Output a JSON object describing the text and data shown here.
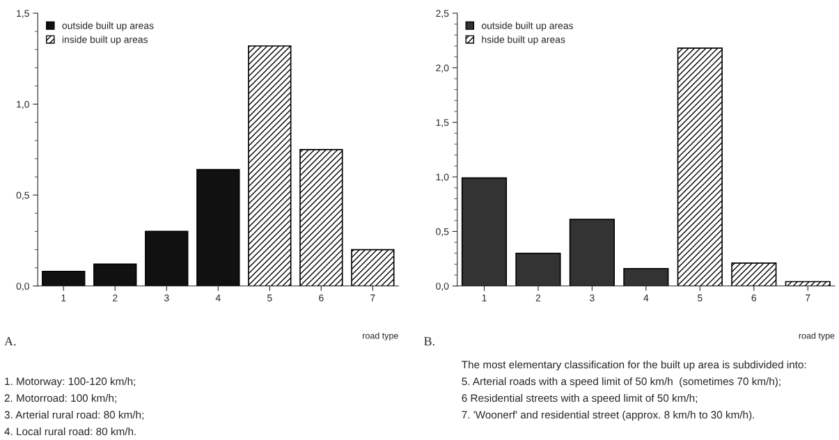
{
  "chart_data": [
    {
      "type": "bar",
      "categories": [
        "1",
        "2",
        "3",
        "4",
        "5",
        "6",
        "7"
      ],
      "xlabel": "road type",
      "series": [
        {
          "name": "outside built up areas",
          "color": "#111111",
          "values": [
            0.08,
            0.12,
            0.3,
            0.64,
            null,
            null,
            null
          ]
        },
        {
          "name": "inside built up areas",
          "color": "#000000",
          "values": [
            null,
            null,
            null,
            null,
            1.32,
            0.75,
            0.2
          ]
        }
      ],
      "ylim": [
        0,
        1.5
      ],
      "yticks": [
        {
          "value": 0,
          "label": "0,0"
        },
        {
          "value": 0.5,
          "label": "0,5"
        },
        {
          "value": 1.0,
          "label": "1,0"
        },
        {
          "value": 1.5,
          "label": "1,5"
        }
      ],
      "stacked": true,
      "legend": "top left",
      "grid": false,
      "annotations": [
        "A.",
        "1. Motorway: 100-120 km/h;",
        "2. Motorroad: 100 km/h;",
        "3. Arterial rural road: 80 km/h;",
        "4. Local rural road: 80 km/h."
      ]
    },
    {
      "type": "bar",
      "categories": [
        "1",
        "2",
        "3",
        "4",
        "5",
        "6",
        "7"
      ],
      "xlabel": "road type",
      "series": [
        {
          "name": "outside built up areas",
          "color": "#333333",
          "values": [
            0.99,
            0.3,
            0.61,
            0.16,
            null,
            null,
            null
          ]
        },
        {
          "name": "hside built up areas",
          "color": "#000000",
          "values": [
            null,
            null,
            null,
            null,
            2.18,
            0.21,
            0.04
          ]
        }
      ],
      "ylim": [
        0,
        2.5
      ],
      "yticks": [
        {
          "value": 0,
          "label": "0,0"
        },
        {
          "value": 0.5,
          "label": "0,5"
        },
        {
          "value": 1.0,
          "label": "1,0"
        },
        {
          "value": 1.5,
          "label": "1,5"
        },
        {
          "value": 2.0,
          "label": "2,0"
        },
        {
          "value": 2.5,
          "label": "2,5"
        }
      ],
      "stacked": true,
      "legend": "top left",
      "grid": false,
      "annotations": [
        "B.",
        "The most elementary classification for the built up area is subdivided into:",
        "5. Arterial roads with a speed limit of 50 km/h  (sometimes 70 km/h);",
        "6 Residential streets with a speed limit of 50 km/h;",
        "7. 'Woonerf' and residential street (approx. 8 km/h to 30 km/h)."
      ]
    }
  ]
}
